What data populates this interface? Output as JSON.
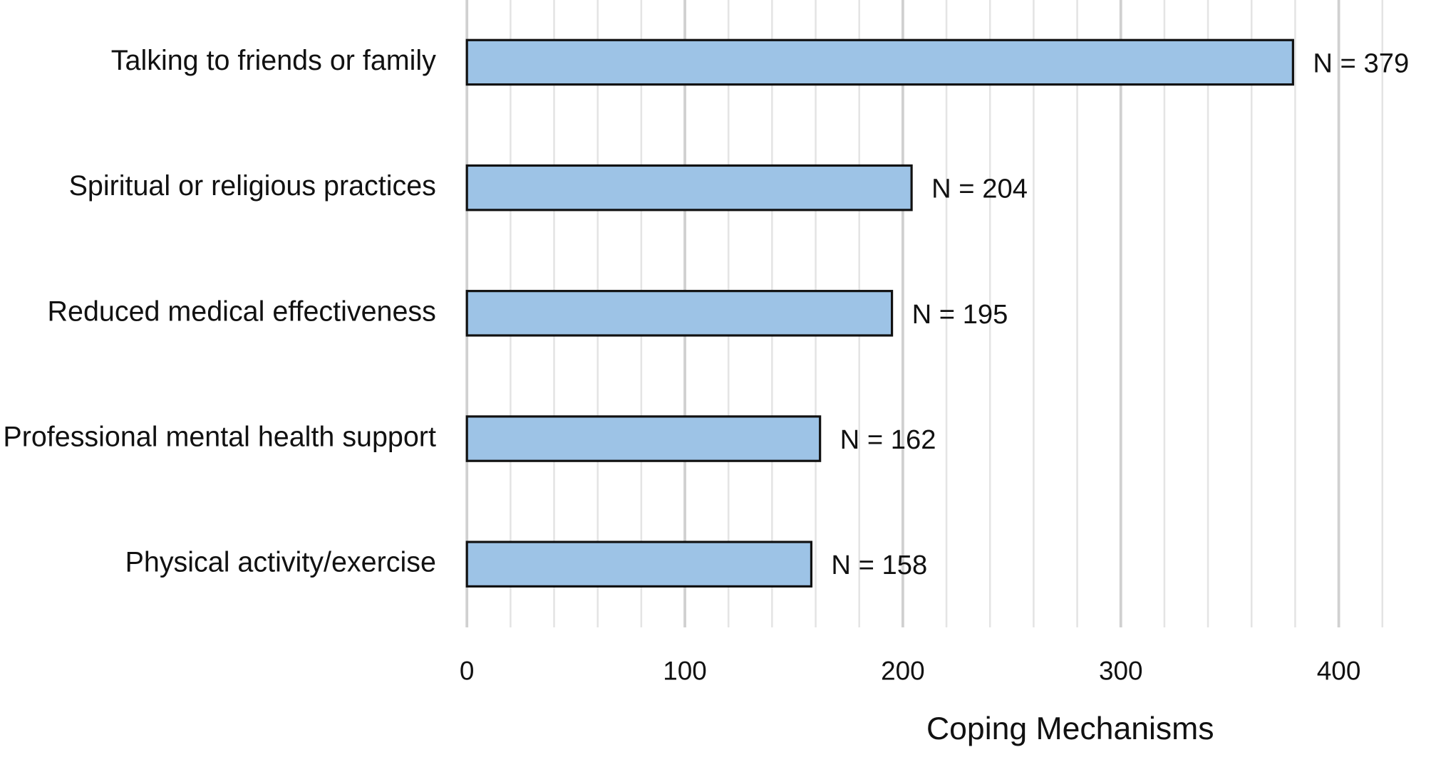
{
  "chart_data": {
    "type": "hbar",
    "x_label": "Coping Mechanisms",
    "categories": [
      "Talking to friends or family",
      "Spiritual or religious practices",
      "Reduced medical effectiveness",
      "Professional mental health support",
      "Physical activity/exercise"
    ],
    "values": [
      379,
      204,
      195,
      162,
      158
    ],
    "value_labels": [
      "N = 379",
      "N = 204",
      "N = 195",
      "N = 162",
      "N = 158"
    ],
    "color": "#9dc3e6",
    "xlim": [
      0,
      430
    ],
    "xticks": [
      0,
      100,
      200,
      300,
      400
    ],
    "minor_xticks": [
      20,
      40,
      60,
      80,
      120,
      140,
      160,
      180,
      220,
      240,
      260,
      280,
      320,
      340,
      360,
      380,
      420
    ],
    "grid": true
  }
}
